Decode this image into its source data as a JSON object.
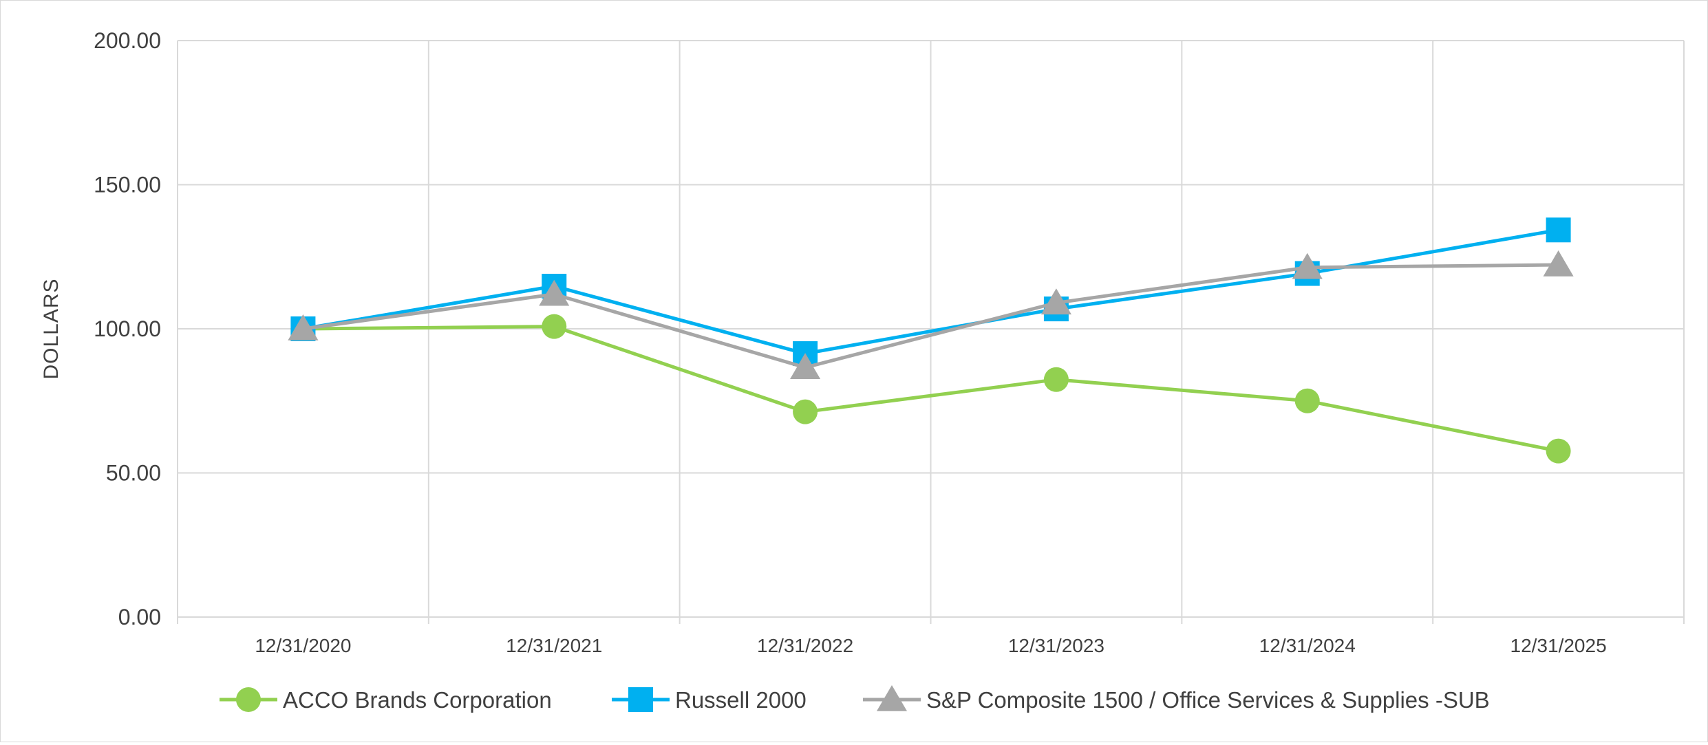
{
  "chart_data": {
    "type": "line",
    "title": "",
    "xlabel": "",
    "ylabel": "DOLLARS",
    "ylim": [
      0,
      200
    ],
    "yticks": [
      "0.00",
      "50.00",
      "100.00",
      "150.00",
      "200.00"
    ],
    "categories": [
      "12/31/2020",
      "12/31/2021",
      "12/31/2022",
      "12/31/2023",
      "12/31/2024",
      "12/31/2025"
    ],
    "grid": true,
    "legend_position": "bottom",
    "series": [
      {
        "name": "ACCO Brands Corporation",
        "color": "#92d050",
        "marker": "circle",
        "values": [
          100.0,
          100.8,
          71.2,
          82.4,
          75.0,
          57.6
        ]
      },
      {
        "name": "Russell 2000",
        "color": "#00b0f0",
        "marker": "square",
        "values": [
          100.0,
          114.8,
          91.4,
          106.9,
          119.2,
          134.3
        ]
      },
      {
        "name": "S&P Composite 1500 / Office Services & Supplies -SUB",
        "color": "#a6a6a6",
        "marker": "triangle",
        "values": [
          100.0,
          112.0,
          86.6,
          109.0,
          121.3,
          122.2
        ]
      }
    ]
  }
}
